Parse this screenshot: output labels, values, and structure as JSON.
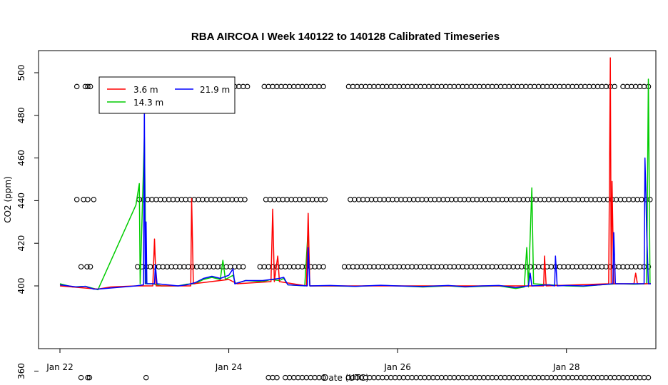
{
  "chart_data": {
    "type": "line",
    "title": "RBA AIRCOA I  Week 140122 to 140128  Calibrated Timeseries",
    "xlabel": "Date (UTC)",
    "ylabel": "CO2 (ppm)",
    "x_is_day_of_january_2014": true,
    "xlim": [
      22.0,
      29.0
    ],
    "ylim": [
      352,
      512
    ],
    "x_ticks": [
      {
        "value": 22,
        "label": "Jan 22"
      },
      {
        "value": 24,
        "label": "Jan 24"
      },
      {
        "value": 26,
        "label": "Jan 26"
      },
      {
        "value": 28,
        "label": "Jan 28"
      }
    ],
    "y_ticks": [
      {
        "value": 360,
        "label": "360"
      },
      {
        "value": 400,
        "label": "400"
      },
      {
        "value": 420,
        "label": "420"
      },
      {
        "value": 440,
        "label": "440"
      },
      {
        "value": 460,
        "label": "460"
      },
      {
        "value": 480,
        "label": "480"
      },
      {
        "value": 500,
        "label": "500"
      }
    ],
    "legend": {
      "placement": "top-left",
      "entries": [
        {
          "label": "3.6 m",
          "color": "#ff0000"
        },
        {
          "label": "14.3 m",
          "color": "#00cc00"
        },
        {
          "label": "21.9 m",
          "color": "#0000ff"
        }
      ]
    },
    "series": [
      {
        "name": "14.3 m",
        "color": "#00cc00",
        "points": [
          [
            22.0,
            401
          ],
          [
            22.15,
            399.5
          ],
          [
            22.3,
            399.8
          ],
          [
            22.4,
            398.8
          ],
          [
            22.45,
            398.2
          ],
          [
            22.9,
            438
          ],
          [
            22.94,
            448
          ],
          [
            22.95,
            401
          ],
          [
            23.0,
            470
          ],
          [
            23.02,
            401
          ],
          [
            23.1,
            401
          ],
          [
            23.2,
            400
          ],
          [
            23.4,
            400
          ],
          [
            23.5,
            400.8
          ],
          [
            23.6,
            401
          ],
          [
            23.7,
            403
          ],
          [
            23.8,
            404
          ],
          [
            23.9,
            403
          ],
          [
            23.93,
            412
          ],
          [
            23.96,
            403
          ],
          [
            24.05,
            405
          ],
          [
            24.08,
            401
          ],
          [
            24.2,
            402.5
          ],
          [
            24.4,
            402
          ],
          [
            24.5,
            403
          ],
          [
            24.6,
            402.5
          ],
          [
            24.65,
            403.5
          ],
          [
            24.7,
            400.5
          ],
          [
            24.9,
            400
          ],
          [
            24.94,
            427
          ],
          [
            24.96,
            400
          ],
          [
            25.2,
            400
          ],
          [
            25.5,
            399.8
          ],
          [
            25.8,
            400.2
          ],
          [
            26.0,
            400
          ],
          [
            26.3,
            399.5
          ],
          [
            26.6,
            400
          ],
          [
            26.8,
            399.5
          ],
          [
            27.0,
            399.8
          ],
          [
            27.2,
            400
          ],
          [
            27.4,
            398.8
          ],
          [
            27.5,
            399.5
          ],
          [
            27.53,
            418
          ],
          [
            27.55,
            399.5
          ],
          [
            27.59,
            446
          ],
          [
            27.61,
            401
          ],
          [
            27.8,
            400.5
          ],
          [
            28.0,
            400
          ],
          [
            28.2,
            399.8
          ],
          [
            28.4,
            400.5
          ],
          [
            28.6,
            401
          ],
          [
            28.8,
            400.8
          ],
          [
            28.95,
            401
          ],
          [
            28.97,
            497
          ],
          [
            28.99,
            401
          ]
        ]
      },
      {
        "name": "3.6 m",
        "color": "#ff0000",
        "points": [
          [
            22.0,
            400
          ],
          [
            22.45,
            398.5
          ],
          [
            22.6,
            399.5
          ],
          [
            22.9,
            400
          ],
          [
            23.1,
            400
          ],
          [
            23.12,
            422
          ],
          [
            23.14,
            400
          ],
          [
            23.55,
            400
          ],
          [
            23.56,
            441
          ],
          [
            23.58,
            401
          ],
          [
            24.0,
            403
          ],
          [
            24.1,
            401
          ],
          [
            24.5,
            402
          ],
          [
            24.52,
            436
          ],
          [
            24.54,
            402
          ],
          [
            24.58,
            414
          ],
          [
            24.6,
            402
          ],
          [
            24.92,
            400
          ],
          [
            24.94,
            434
          ],
          [
            24.96,
            400
          ],
          [
            26.0,
            400
          ],
          [
            27.0,
            400
          ],
          [
            27.73,
            400
          ],
          [
            27.74,
            414
          ],
          [
            27.76,
            400
          ],
          [
            28.5,
            401
          ],
          [
            28.52,
            507
          ],
          [
            28.53,
            401
          ],
          [
            28.54,
            449
          ],
          [
            28.56,
            401
          ],
          [
            28.8,
            401
          ],
          [
            28.82,
            406
          ],
          [
            28.84,
            401
          ],
          [
            29.0,
            401
          ]
        ]
      },
      {
        "name": "21.9 m",
        "color": "#0000ff",
        "points": [
          [
            22.0,
            400.5
          ],
          [
            22.1,
            400
          ],
          [
            22.2,
            399.5
          ],
          [
            22.3,
            399.8
          ],
          [
            22.4,
            398.5
          ],
          [
            22.45,
            398.5
          ],
          [
            22.9,
            400
          ],
          [
            22.99,
            400.5
          ],
          [
            23.0,
            483
          ],
          [
            23.01,
            401
          ],
          [
            23.02,
            430
          ],
          [
            23.03,
            401
          ],
          [
            23.12,
            401
          ],
          [
            23.13,
            410
          ],
          [
            23.15,
            401
          ],
          [
            23.4,
            400
          ],
          [
            23.5,
            400.5
          ],
          [
            23.6,
            401.5
          ],
          [
            23.7,
            403.5
          ],
          [
            23.8,
            404.5
          ],
          [
            23.9,
            403.5
          ],
          [
            24.0,
            405
          ],
          [
            24.05,
            408
          ],
          [
            24.07,
            401
          ],
          [
            24.2,
            402.5
          ],
          [
            24.4,
            402.5
          ],
          [
            24.5,
            403
          ],
          [
            24.6,
            403.5
          ],
          [
            24.65,
            404
          ],
          [
            24.7,
            400.5
          ],
          [
            24.93,
            400
          ],
          [
            24.94,
            418
          ],
          [
            24.96,
            400
          ],
          [
            25.2,
            400.2
          ],
          [
            25.5,
            399.8
          ],
          [
            25.8,
            400.3
          ],
          [
            26.0,
            400
          ],
          [
            26.3,
            399.7
          ],
          [
            26.6,
            400.2
          ],
          [
            26.8,
            399.6
          ],
          [
            27.0,
            400
          ],
          [
            27.2,
            400.2
          ],
          [
            27.4,
            399.2
          ],
          [
            27.55,
            400
          ],
          [
            27.57,
            406
          ],
          [
            27.59,
            400
          ],
          [
            27.8,
            400.5
          ],
          [
            27.86,
            400
          ],
          [
            27.87,
            414
          ],
          [
            27.89,
            400
          ],
          [
            28.0,
            400.2
          ],
          [
            28.2,
            400
          ],
          [
            28.4,
            400.5
          ],
          [
            28.55,
            401
          ],
          [
            28.56,
            425
          ],
          [
            28.58,
            401
          ],
          [
            28.8,
            401
          ],
          [
            28.92,
            401
          ],
          [
            28.93,
            460
          ],
          [
            28.94,
            445
          ],
          [
            28.95,
            426
          ],
          [
            28.97,
            401
          ],
          [
            29.0,
            401
          ]
        ]
      }
    ],
    "reference_rows": [
      {
        "value": 493.5,
        "x": [
          22.2,
          22.3,
          22.33,
          22.36,
          22.98,
          23.02,
          23.07,
          23.12,
          23.17,
          23.22,
          23.32,
          23.37,
          23.42,
          23.47,
          23.52,
          23.57,
          23.62,
          23.67,
          23.72,
          23.77,
          23.82,
          23.87,
          23.92,
          23.97,
          24.02,
          24.07,
          24.12,
          24.17,
          24.22,
          24.42,
          24.47,
          24.52,
          24.57,
          24.62,
          24.67,
          24.72,
          24.77,
          24.82,
          24.87,
          24.92,
          24.97,
          25.02,
          25.07,
          25.12,
          25.42,
          25.47,
          25.52,
          25.57,
          25.62,
          25.67,
          25.72,
          25.77,
          25.82,
          25.87,
          25.92,
          25.97,
          26.02,
          26.07,
          26.12,
          26.17,
          26.22,
          26.27,
          26.32,
          26.37,
          26.42,
          26.47,
          26.52,
          26.57,
          26.62,
          26.67,
          26.72,
          26.77,
          26.82,
          26.87,
          26.92,
          26.97,
          27.02,
          27.07,
          27.12,
          27.17,
          27.22,
          27.27,
          27.32,
          27.37,
          27.42,
          27.47,
          27.52,
          27.57,
          27.62,
          27.67,
          27.72,
          27.77,
          27.82,
          27.87,
          27.92,
          27.97,
          28.02,
          28.07,
          28.12,
          28.17,
          28.22,
          28.27,
          28.32,
          28.37,
          28.42,
          28.47,
          28.52,
          28.57,
          28.67,
          28.72,
          28.77,
          28.82,
          28.87,
          28.92,
          28.97
        ]
      },
      {
        "value": 440.5,
        "x": [
          22.2,
          22.28,
          22.33,
          22.4,
          22.94,
          22.99,
          23.04,
          23.09,
          23.14,
          23.19,
          23.24,
          23.29,
          23.34,
          23.39,
          23.44,
          23.49,
          23.54,
          23.59,
          23.64,
          23.69,
          23.74,
          23.79,
          23.84,
          23.89,
          23.94,
          23.99,
          24.04,
          24.09,
          24.14,
          24.19,
          24.44,
          24.49,
          24.54,
          24.59,
          24.64,
          24.69,
          24.74,
          24.79,
          24.84,
          24.89,
          24.94,
          24.99,
          25.04,
          25.09,
          25.14,
          25.44,
          25.49,
          25.54,
          25.59,
          25.64,
          25.69,
          25.74,
          25.79,
          25.84,
          25.89,
          25.94,
          25.99,
          26.04,
          26.09,
          26.14,
          26.19,
          26.24,
          26.29,
          26.34,
          26.39,
          26.44,
          26.49,
          26.54,
          26.59,
          26.64,
          26.69,
          26.74,
          26.79,
          26.84,
          26.89,
          26.94,
          26.99,
          27.04,
          27.09,
          27.14,
          27.19,
          27.24,
          27.29,
          27.34,
          27.39,
          27.44,
          27.49,
          27.54,
          27.59,
          27.64,
          27.69,
          27.74,
          27.79,
          27.84,
          27.89,
          27.94,
          27.99,
          28.04,
          28.09,
          28.14,
          28.19,
          28.24,
          28.29,
          28.34,
          28.39,
          28.44,
          28.49,
          28.54,
          28.59,
          28.64,
          28.69,
          28.74,
          28.79,
          28.84,
          28.89,
          28.94,
          28.99
        ]
      },
      {
        "value": 409,
        "x": [
          22.25,
          22.32,
          22.36,
          22.92,
          22.97,
          23.02,
          23.07,
          23.12,
          23.17,
          23.22,
          23.27,
          23.32,
          23.37,
          23.42,
          23.47,
          23.52,
          23.57,
          23.62,
          23.67,
          23.72,
          23.77,
          23.82,
          23.87,
          23.92,
          23.97,
          24.02,
          24.07,
          24.12,
          24.17,
          24.37,
          24.42,
          24.47,
          24.52,
          24.57,
          24.62,
          24.67,
          24.72,
          24.77,
          24.82,
          24.87,
          24.92,
          24.97,
          25.02,
          25.07,
          25.12,
          25.37,
          25.42,
          25.47,
          25.52,
          25.57,
          25.62,
          25.67,
          25.72,
          25.77,
          25.82,
          25.87,
          25.92,
          25.97,
          26.02,
          26.07,
          26.12,
          26.17,
          26.22,
          26.27,
          26.32,
          26.37,
          26.42,
          26.47,
          26.52,
          26.57,
          26.62,
          26.67,
          26.72,
          26.77,
          26.82,
          26.87,
          26.92,
          26.97,
          27.02,
          27.07,
          27.12,
          27.17,
          27.22,
          27.27,
          27.32,
          27.37,
          27.42,
          27.47,
          27.52,
          27.57,
          27.62,
          27.67,
          27.72,
          27.77,
          27.82,
          27.87,
          27.92,
          27.97,
          28.02,
          28.07,
          28.12,
          28.17,
          28.22,
          28.27,
          28.32,
          28.37,
          28.42,
          28.47,
          28.52,
          28.57,
          28.62,
          28.67,
          28.72,
          28.77,
          28.82,
          28.87,
          28.92,
          28.97
        ]
      },
      {
        "value": 357,
        "x": [
          22.25,
          22.33,
          22.35,
          23.02,
          24.47,
          24.52,
          24.57,
          24.67,
          24.72,
          24.77,
          24.82,
          24.87,
          24.92,
          24.97,
          25.02,
          25.07,
          25.12,
          25.42,
          25.47,
          25.52,
          25.57,
          25.62,
          25.67,
          25.72,
          25.77,
          25.82,
          25.87,
          25.92,
          25.97,
          26.02,
          26.07,
          26.12,
          26.17,
          26.22,
          26.27,
          26.32,
          26.37,
          26.42,
          26.47,
          26.52,
          26.57,
          26.62,
          26.67,
          26.72,
          26.77,
          26.82,
          26.87,
          26.92,
          26.97,
          27.02,
          27.07,
          27.12,
          27.17,
          27.22,
          27.27,
          27.32,
          27.37,
          27.42,
          27.47,
          27.52,
          27.57,
          27.62,
          27.67,
          27.72,
          27.77,
          27.82,
          27.87,
          27.92,
          27.97,
          28.02,
          28.07,
          28.12,
          28.17,
          28.22,
          28.27,
          28.32,
          28.37,
          28.42,
          28.47,
          28.52,
          28.57,
          28.62,
          28.67,
          28.72,
          28.77,
          28.82,
          28.87,
          28.92,
          28.97
        ]
      }
    ]
  }
}
